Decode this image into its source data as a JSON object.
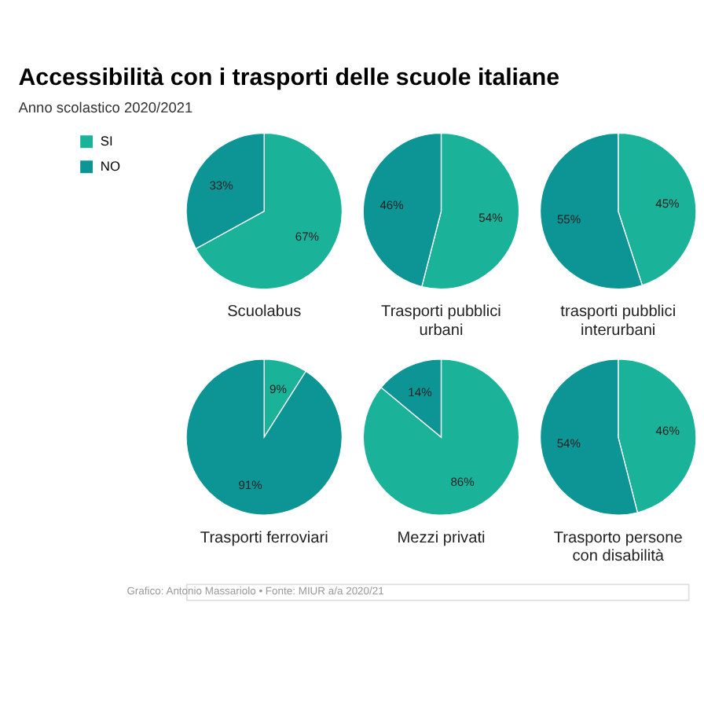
{
  "chart_data": [
    {
      "type": "pie",
      "title": "Accessibilità con i trasporti delle scuole italiane",
      "subtitle": "Anno scolastico 2020/2021",
      "legend": "top left",
      "annotations": [
        "Grafico: Antonio Massariolo • Fonte: MIUR a/a 2020/21"
      ],
      "xlabel": "Scuolabus",
      "categories": [
        "SI",
        "NO"
      ],
      "values": [
        67,
        33
      ],
      "colors": [
        "#1ab39a",
        "#0d9495"
      ],
      "value_labels": [
        "67%",
        "33%"
      ]
    },
    {
      "type": "pie",
      "xlabel": "Trasporti pubblici urbani",
      "values": [
        54,
        46
      ],
      "colors": [
        "#1ab39a",
        "#0d9495"
      ],
      "value_labels": [
        "54%",
        "46%"
      ]
    },
    {
      "type": "pie",
      "xlabel": "trasporti pubblici interurbani",
      "values": [
        45,
        55
      ],
      "colors": [
        "#1ab39a",
        "#0d9495"
      ],
      "value_labels": [
        "45%",
        "55%"
      ]
    },
    {
      "type": "pie",
      "xlabel": "Trasporti ferroviari",
      "values": [
        9,
        91
      ],
      "colors": [
        "#1ab39a",
        "#0d9495"
      ],
      "value_labels": [
        "9%",
        "91%"
      ]
    },
    {
      "type": "pie",
      "xlabel": "Mezzi privati",
      "values": [
        86,
        14
      ],
      "colors": [
        "#1ab39a",
        "#0d9495"
      ],
      "value_labels": [
        "86%",
        "14%"
      ]
    },
    {
      "type": "pie",
      "xlabel": "Trasporto persone con disabilità",
      "values": [
        46,
        54
      ],
      "colors": [
        "#1ab39a",
        "#0d9495"
      ],
      "value_labels": [
        "46%",
        "54%"
      ]
    }
  ]
}
